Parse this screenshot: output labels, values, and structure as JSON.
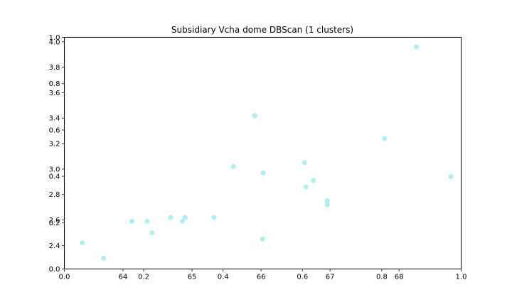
{
  "chart_data": {
    "type": "scatter",
    "title": "Subsidiary Vcha dome DBScan (1 clusters)",
    "xlabel": "",
    "ylabel": "",
    "grid": false,
    "point_color": "#aeeeee",
    "axes": {
      "outer": {
        "xlim": [
          0.0,
          1.0
        ],
        "ylim": [
          0.0,
          1.0
        ],
        "x_ticks": [
          0.0,
          0.2,
          0.4,
          0.6,
          0.8,
          1.0
        ],
        "x_tick_labels": [
          "0.0",
          "0.2",
          "0.4",
          "0.6",
          "0.8",
          "1.0"
        ],
        "y_ticks": [
          0.0,
          0.2,
          0.4,
          0.6,
          0.8,
          1.0
        ],
        "y_tick_labels": [
          "0.0",
          "0.2",
          "0.4",
          "0.6",
          "0.8",
          "1.0"
        ]
      },
      "data": {
        "xlim": [
          63.15,
          68.9
        ],
        "ylim": [
          2.215,
          4.035
        ],
        "x_ticks": [
          64,
          65,
          66,
          67,
          68
        ],
        "x_tick_labels": [
          "64",
          "65",
          "66",
          "67",
          "68"
        ],
        "y_ticks": [
          2.4,
          2.6,
          2.8,
          3.0,
          3.2,
          3.4,
          3.6,
          3.8,
          4.0
        ],
        "y_tick_labels": [
          "2.4",
          "2.6",
          "2.8",
          "3.0",
          "3.2",
          "3.4",
          "3.6",
          "3.8",
          "4.0"
        ]
      }
    },
    "points": [
      {
        "x": 63.41,
        "y": 2.42
      },
      {
        "x": 63.72,
        "y": 2.3
      },
      {
        "x": 64.13,
        "y": 2.59
      },
      {
        "x": 64.35,
        "y": 2.59
      },
      {
        "x": 64.42,
        "y": 2.5
      },
      {
        "x": 64.69,
        "y": 2.62
      },
      {
        "x": 64.86,
        "y": 2.59
      },
      {
        "x": 64.9,
        "y": 2.62
      },
      {
        "x": 65.32,
        "y": 2.62
      },
      {
        "x": 65.6,
        "y": 3.02
      },
      {
        "x": 65.91,
        "y": 3.42
      },
      {
        "x": 66.03,
        "y": 2.97
      },
      {
        "x": 66.02,
        "y": 2.45
      },
      {
        "x": 66.63,
        "y": 3.05
      },
      {
        "x": 66.65,
        "y": 2.86
      },
      {
        "x": 66.76,
        "y": 2.91
      },
      {
        "x": 66.96,
        "y": 2.75
      },
      {
        "x": 66.96,
        "y": 2.72
      },
      {
        "x": 67.79,
        "y": 3.24
      },
      {
        "x": 68.25,
        "y": 3.96
      },
      {
        "x": 68.75,
        "y": 2.94
      }
    ]
  }
}
